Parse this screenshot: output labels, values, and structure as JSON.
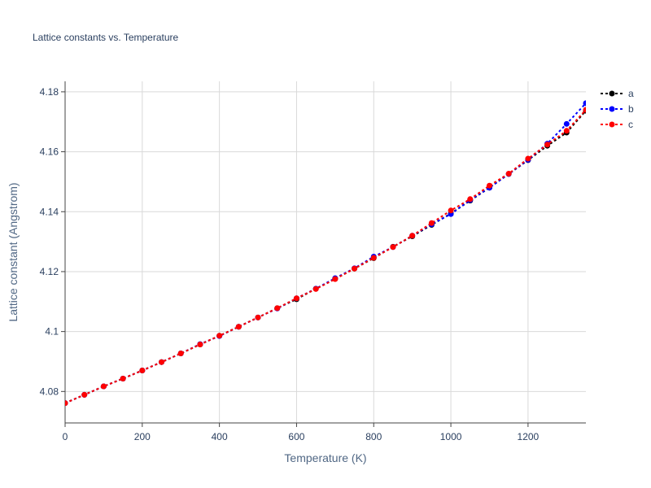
{
  "chart_data": {
    "type": "line",
    "title": "Lattice constants vs. Temperature",
    "xlabel": "Temperature (K)",
    "ylabel": "Lattice constant (Angstrom)",
    "xlim": [
      0,
      1350
    ],
    "ylim": [
      4.0695,
      4.1835
    ],
    "x_ticks": [
      0,
      200,
      400,
      600,
      800,
      1000,
      1200
    ],
    "y_ticks": [
      4.08,
      4.1,
      4.12,
      4.14,
      4.16,
      4.18
    ],
    "x_tick_labels": [
      "0",
      "200",
      "400",
      "600",
      "800",
      "1000",
      "1200"
    ],
    "y_tick_labels": [
      "4.08",
      "4.1",
      "4.12",
      "4.14",
      "4.16",
      "4.18"
    ],
    "grid": true,
    "legend": "top-right",
    "x": [
      0,
      50,
      100,
      150,
      200,
      250,
      300,
      350,
      400,
      450,
      500,
      550,
      600,
      650,
      700,
      750,
      800,
      850,
      900,
      950,
      1000,
      1050,
      1100,
      1150,
      1200,
      1250,
      1300,
      1350
    ],
    "series": [
      {
        "name": "a",
        "color": "#000000",
        "values": [
          4.0761,
          4.0789,
          4.0817,
          4.0843,
          4.087,
          4.0898,
          4.0927,
          4.0957,
          4.0986,
          4.1016,
          4.1047,
          4.1078,
          4.1108,
          4.1143,
          4.1176,
          4.121,
          4.1245,
          4.1283,
          4.1318,
          4.1356,
          4.1394,
          4.1437,
          4.148,
          4.1526,
          4.1572,
          4.162,
          4.1664,
          4.1737
        ]
      },
      {
        "name": "b",
        "color": "#0000ff",
        "values": [
          4.0761,
          4.0789,
          4.0817,
          4.0843,
          4.087,
          4.0898,
          4.0927,
          4.0958,
          4.0985,
          4.1016,
          4.1047,
          4.1077,
          4.1111,
          4.1143,
          4.1178,
          4.1211,
          4.125,
          4.1282,
          4.132,
          4.1358,
          4.1392,
          4.1439,
          4.148,
          4.1526,
          4.1573,
          4.1627,
          4.1693,
          4.1762
        ]
      },
      {
        "name": "c",
        "color": "#ff0000",
        "values": [
          4.0761,
          4.0789,
          4.0817,
          4.0843,
          4.087,
          4.0898,
          4.0927,
          4.0957,
          4.0986,
          4.1016,
          4.1047,
          4.1078,
          4.1111,
          4.1142,
          4.1175,
          4.121,
          4.1246,
          4.1282,
          4.132,
          4.1362,
          4.1404,
          4.1442,
          4.1487,
          4.1527,
          4.1577,
          4.1624,
          4.167,
          4.174
        ]
      }
    ]
  },
  "colors": {
    "grid": "#d9d9d9",
    "axis": "#444444",
    "text": "#2a3f5f"
  }
}
